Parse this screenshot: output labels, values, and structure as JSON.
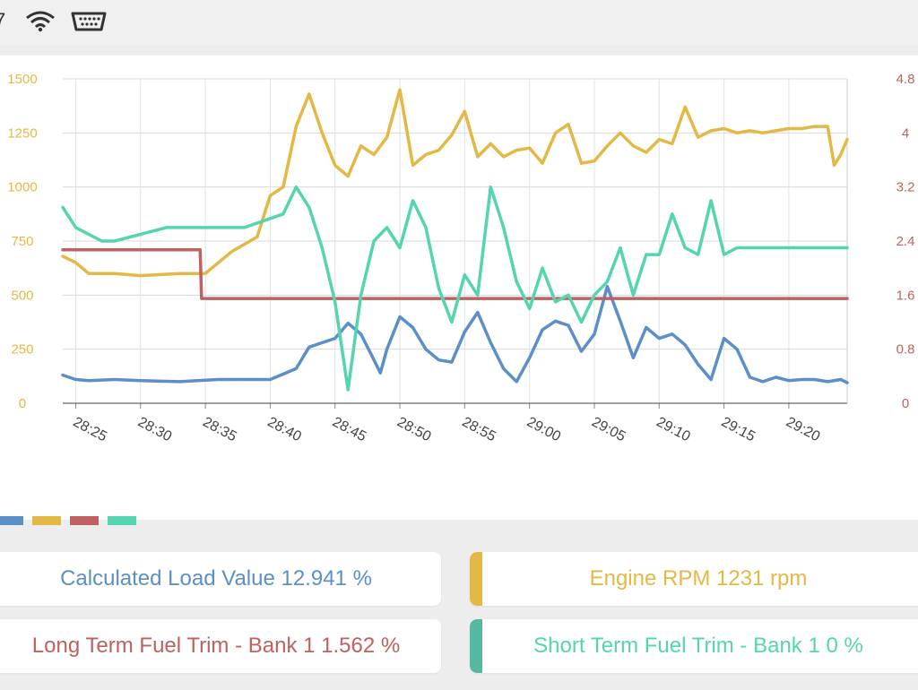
{
  "status": {
    "time_fragment": "7",
    "icons": [
      "wifi-icon",
      "obd-adapter-icon"
    ]
  },
  "colors": {
    "load": "#5b8fc8",
    "rpm": "#e3b844",
    "ltft": "#c06060",
    "stft": "#55d4b0",
    "axis_left": "#e3b844",
    "axis_right": "#c06060"
  },
  "chart_data": {
    "type": "line",
    "x_ticks": [
      "28:25",
      "28:30",
      "28:35",
      "28:40",
      "28:45",
      "28:50",
      "28:55",
      "29:00",
      "29:05",
      "29:10",
      "29:15",
      "29:20"
    ],
    "x_range_min": [
      24.0,
      84.5
    ],
    "left_axis": {
      "ticks": [
        "1500",
        "1250",
        "1000",
        "750",
        "500",
        "250",
        "0"
      ],
      "ylim": [
        0,
        1500
      ]
    },
    "right_axis": {
      "ticks": [
        "4.8",
        "4",
        "3.2",
        "2.4",
        "1.6",
        "0.8",
        "0"
      ],
      "ylim": [
        0,
        4.8
      ]
    },
    "grid": true,
    "legend_position": "bottom-left",
    "series": [
      {
        "key": "load",
        "axis": "left",
        "color": "#5b8fc8",
        "x": [
          24,
          25,
          26,
          28,
          30,
          33,
          36,
          40,
          42,
          43,
          45,
          46,
          47,
          48,
          48.5,
          49,
          50,
          51,
          52,
          53,
          54,
          55,
          56,
          57,
          58,
          59,
          60,
          61,
          62,
          63,
          64,
          65,
          66,
          67,
          68,
          69,
          70,
          71,
          72,
          73,
          74,
          75,
          76,
          77,
          78,
          79,
          80,
          81,
          82,
          83,
          84,
          84.5
        ],
        "y": [
          130,
          110,
          105,
          110,
          105,
          100,
          110,
          110,
          160,
          260,
          300,
          370,
          320,
          200,
          140,
          250,
          400,
          350,
          250,
          200,
          190,
          330,
          420,
          280,
          160,
          100,
          210,
          340,
          380,
          360,
          240,
          320,
          540,
          380,
          210,
          350,
          300,
          320,
          270,
          180,
          110,
          300,
          250,
          120,
          100,
          120,
          105,
          110,
          110,
          100,
          110,
          95
        ]
      },
      {
        "key": "rpm",
        "axis": "left",
        "color": "#e3b844",
        "x": [
          24,
          25,
          26,
          28,
          30,
          33,
          35,
          37,
          39,
          40,
          41,
          42,
          43,
          44,
          45,
          46,
          47,
          48,
          49,
          50,
          51,
          52,
          53,
          54,
          55,
          56,
          57,
          58,
          59,
          60,
          61,
          62,
          63,
          64,
          65,
          66,
          67,
          68,
          69,
          70,
          71,
          72,
          73,
          74,
          75,
          76,
          77,
          78,
          79,
          80,
          81,
          82,
          83,
          83.5,
          84,
          84.5
        ],
        "y": [
          680,
          650,
          600,
          600,
          590,
          600,
          600,
          700,
          770,
          960,
          1000,
          1280,
          1430,
          1250,
          1100,
          1050,
          1190,
          1150,
          1230,
          1450,
          1100,
          1150,
          1170,
          1240,
          1350,
          1140,
          1200,
          1140,
          1170,
          1180,
          1110,
          1250,
          1290,
          1110,
          1120,
          1190,
          1250,
          1190,
          1160,
          1220,
          1200,
          1370,
          1230,
          1260,
          1270,
          1250,
          1260,
          1250,
          1260,
          1270,
          1270,
          1280,
          1280,
          1100,
          1150,
          1220
        ]
      },
      {
        "key": "ltft",
        "axis": "right",
        "color": "#c06060",
        "x": [
          24,
          34.6,
          34.7,
          84.5
        ],
        "y": [
          2.27,
          2.27,
          1.55,
          1.55
        ]
      },
      {
        "key": "stft",
        "axis": "right",
        "color": "#55d4b0",
        "x": [
          24,
          25,
          27,
          28,
          32,
          38,
          41,
          42,
          43,
          44,
          45,
          46,
          47,
          48,
          49,
          50,
          51,
          52,
          53,
          54,
          55,
          56,
          57,
          58,
          59,
          60,
          61,
          62,
          63,
          64,
          65,
          66,
          67,
          68,
          69,
          70,
          71,
          72,
          73,
          74,
          75,
          76,
          77,
          78,
          79,
          80,
          84.5
        ],
        "y": [
          2.9,
          2.6,
          2.4,
          2.4,
          2.6,
          2.6,
          2.8,
          3.2,
          2.9,
          2.3,
          1.5,
          0.2,
          1.6,
          2.4,
          2.6,
          2.3,
          3.0,
          2.6,
          1.7,
          1.2,
          1.9,
          1.6,
          3.2,
          2.6,
          1.8,
          1.4,
          2.0,
          1.5,
          1.6,
          1.2,
          1.6,
          1.8,
          2.3,
          1.6,
          2.2,
          2.2,
          2.8,
          2.3,
          2.2,
          3.0,
          2.2,
          2.3,
          2.3,
          2.3,
          2.3,
          2.3,
          2.3
        ]
      }
    ]
  },
  "readouts": [
    {
      "key": "load",
      "label": "Calculated Load Value 12.941 %"
    },
    {
      "key": "rpm",
      "label": "Engine RPM 1231 rpm"
    },
    {
      "key": "ltft",
      "label": "Long Term Fuel Trim - Bank 1 1.562 %"
    },
    {
      "key": "stft",
      "label": "Short Term Fuel Trim - Bank 1 0 %"
    }
  ]
}
